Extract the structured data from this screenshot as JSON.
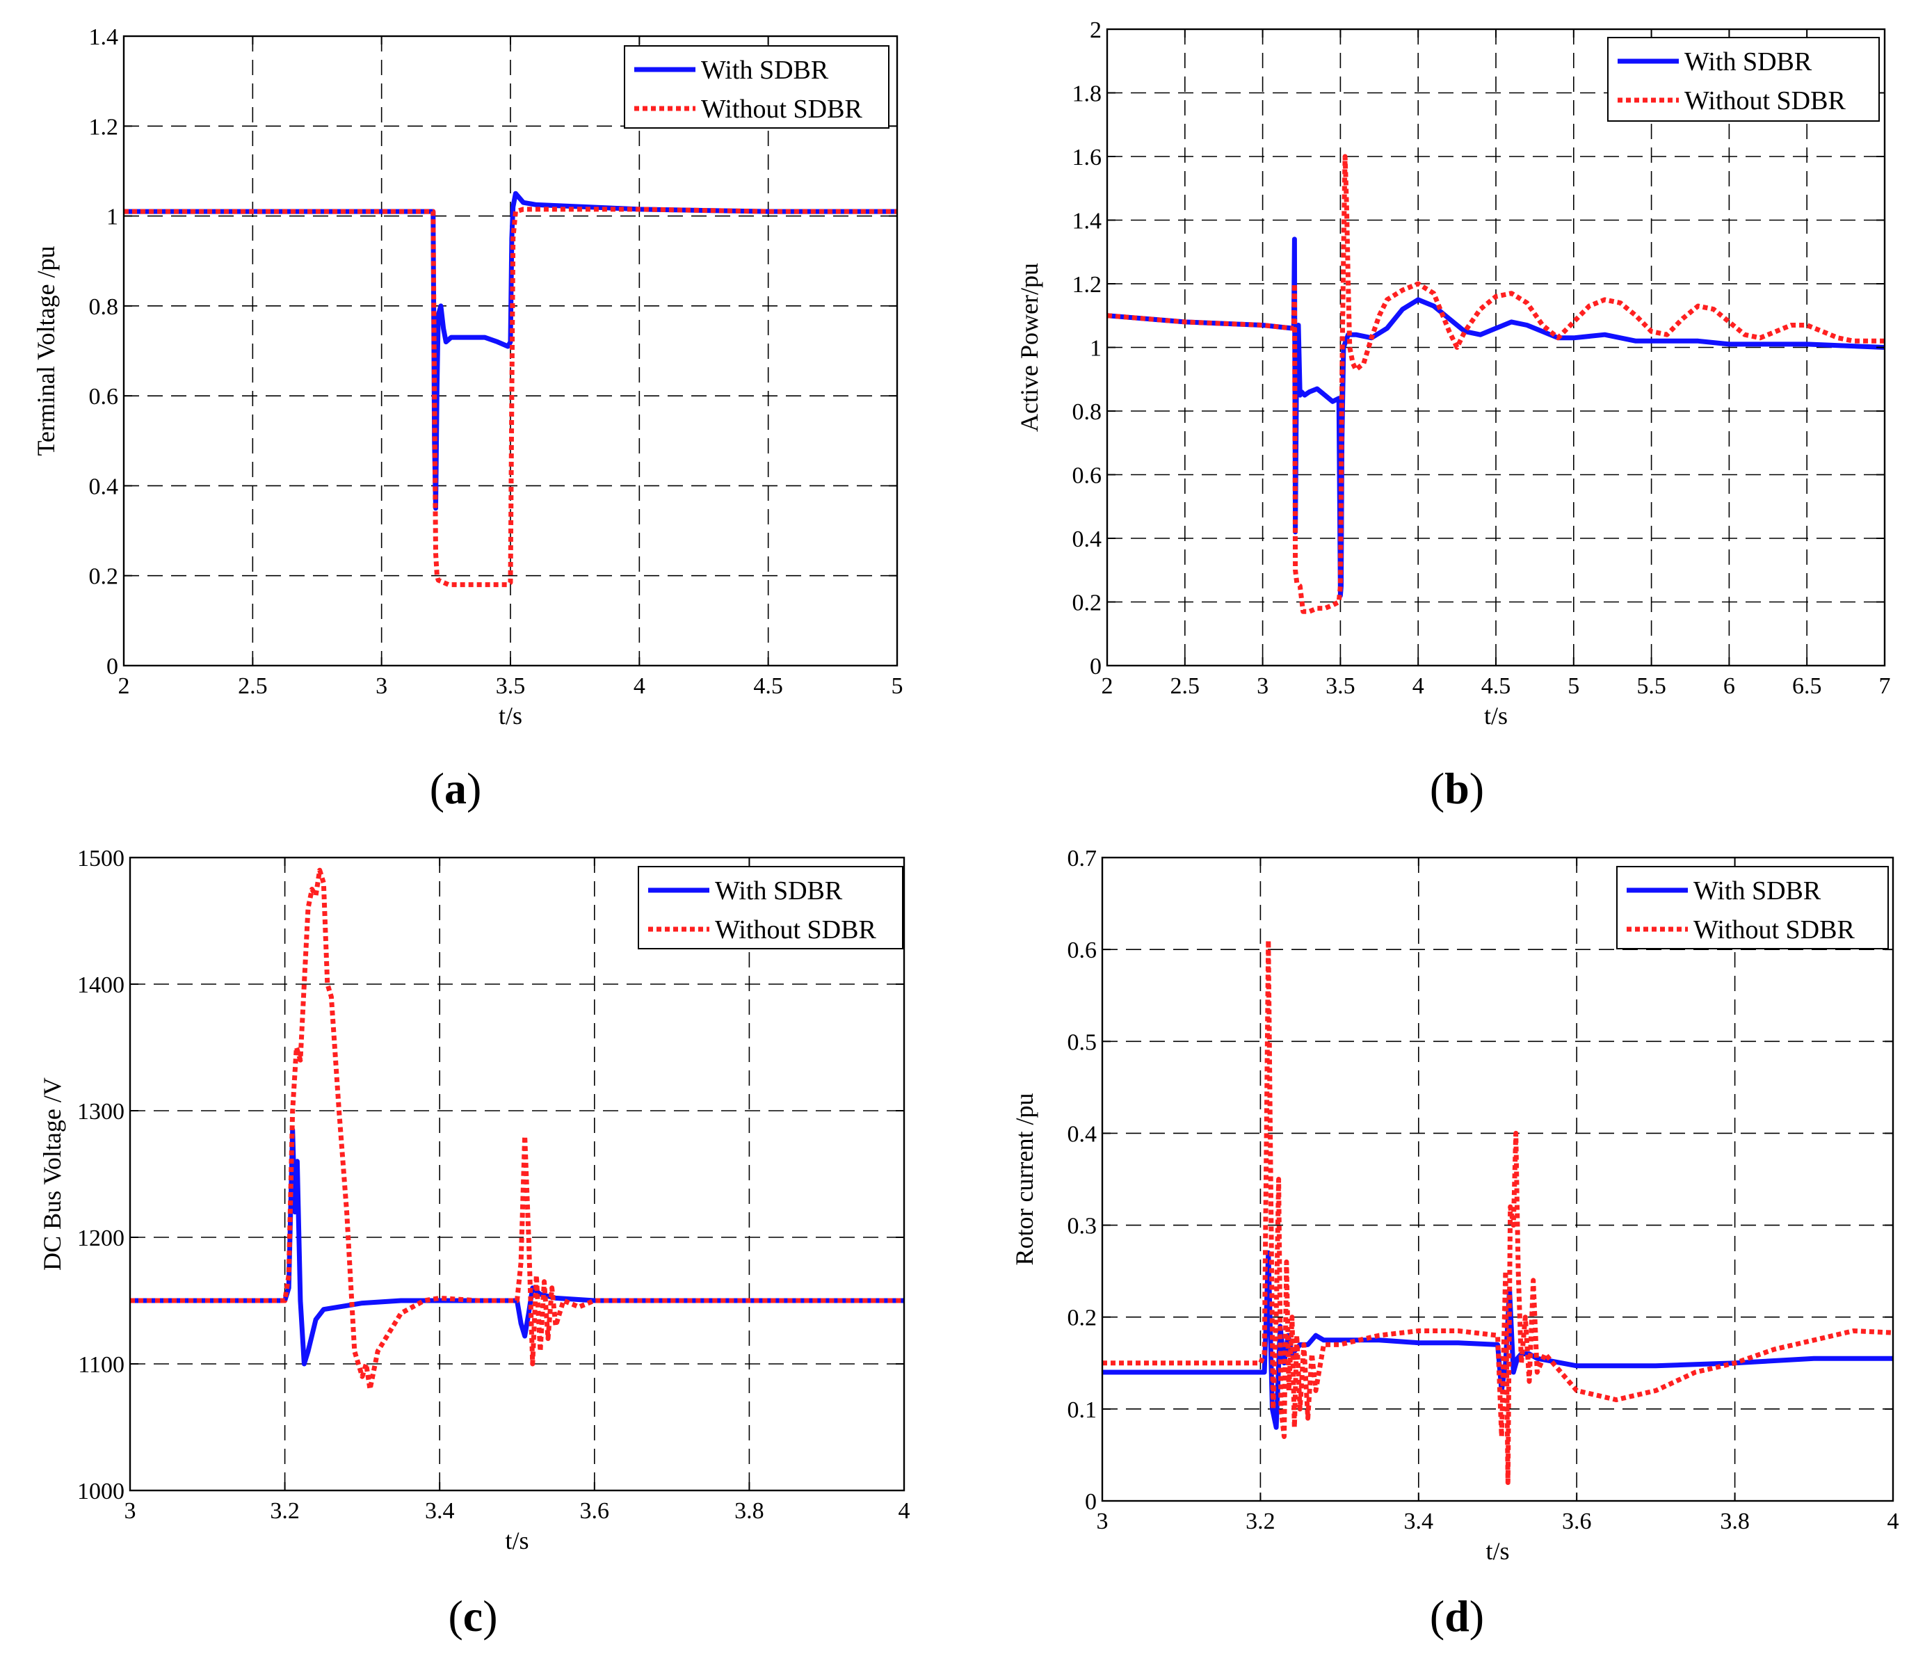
{
  "chart_data": [
    {
      "id": "a",
      "caption_letter": "a",
      "type": "line",
      "xlabel": "t/s",
      "ylabel": "Terminal Voltage /pu",
      "xlim": [
        2,
        5
      ],
      "ylim": [
        0,
        1.4
      ],
      "xticks": [
        2,
        2.5,
        3,
        3.5,
        4,
        4.5,
        5
      ],
      "xtick_labels": [
        "2",
        "2.5",
        "3",
        "3.5",
        "4",
        "4.5",
        "5"
      ],
      "yticks": [
        0,
        0.2,
        0.4,
        0.6,
        0.8,
        1,
        1.2,
        1.4
      ],
      "ytick_labels": [
        "0",
        "0.2",
        "0.4",
        "0.6",
        "0.8",
        "1",
        "1.2",
        "1.4"
      ],
      "grid": true,
      "legend_position": "top-right",
      "series": [
        {
          "name": "With SDBR",
          "color": "#1010ff",
          "style": "solid",
          "x": [
            2,
            2.5,
            3,
            3.19,
            3.2,
            3.205,
            3.21,
            3.215,
            3.22,
            3.23,
            3.24,
            3.25,
            3.27,
            3.3,
            3.35,
            3.4,
            3.45,
            3.49,
            3.5,
            3.505,
            3.51,
            3.52,
            3.55,
            3.6,
            3.8,
            4,
            4.5,
            5
          ],
          "y": [
            1.01,
            1.01,
            1.01,
            1.01,
            1.01,
            0.5,
            0.35,
            0.62,
            0.78,
            0.8,
            0.75,
            0.72,
            0.73,
            0.73,
            0.73,
            0.73,
            0.72,
            0.71,
            0.72,
            0.95,
            1.02,
            1.05,
            1.03,
            1.025,
            1.02,
            1.015,
            1.01,
            1.01
          ]
        },
        {
          "name": "Without SDBR",
          "color": "#ff2020",
          "style": "dotted",
          "x": [
            2,
            2.5,
            3,
            3.19,
            3.2,
            3.205,
            3.21,
            3.215,
            3.22,
            3.24,
            3.26,
            3.3,
            3.4,
            3.49,
            3.5,
            3.505,
            3.51,
            3.52,
            3.55,
            3.6,
            4,
            4.5,
            5
          ],
          "y": [
            1.01,
            1.01,
            1.01,
            1.01,
            1.01,
            0.6,
            0.25,
            0.2,
            0.19,
            0.185,
            0.18,
            0.18,
            0.18,
            0.18,
            0.185,
            0.6,
            0.95,
            1.01,
            1.015,
            1.015,
            1.015,
            1.01,
            1.01
          ]
        }
      ]
    },
    {
      "id": "b",
      "caption_letter": "b",
      "type": "line",
      "xlabel": "t/s",
      "ylabel": "Active Power/pu",
      "xlim": [
        2,
        7
      ],
      "ylim": [
        0,
        2
      ],
      "xticks": [
        2,
        2.5,
        3,
        3.5,
        4,
        4.5,
        5,
        5.5,
        6,
        6.5,
        7
      ],
      "xtick_labels": [
        "2",
        "2.5",
        "3",
        "3.5",
        "4",
        "4.5",
        "5",
        "5.5",
        "6",
        "6.5",
        "7"
      ],
      "yticks": [
        0,
        0.2,
        0.4,
        0.6,
        0.8,
        1,
        1.2,
        1.4,
        1.6,
        1.8,
        2
      ],
      "ytick_labels": [
        "0",
        "0.2",
        "0.4",
        "0.6",
        "0.8",
        "1",
        "1.2",
        "1.4",
        "1.6",
        "1.8",
        "2"
      ],
      "grid": true,
      "legend_position": "top-right",
      "series": [
        {
          "name": "With SDBR",
          "color": "#1010ff",
          "style": "solid",
          "x": [
            2,
            2.5,
            3,
            3.19,
            3.2,
            3.205,
            3.21,
            3.22,
            3.23,
            3.24,
            3.25,
            3.27,
            3.3,
            3.35,
            3.4,
            3.45,
            3.49,
            3.5,
            3.505,
            3.51,
            3.52,
            3.55,
            3.6,
            3.7,
            3.8,
            3.9,
            4.0,
            4.1,
            4.2,
            4.3,
            4.4,
            4.5,
            4.6,
            4.7,
            4.8,
            4.9,
            5.0,
            5.2,
            5.4,
            5.6,
            5.8,
            6.0,
            6.5,
            7.0
          ],
          "y": [
            1.1,
            1.08,
            1.07,
            1.06,
            1.06,
            1.34,
            0.42,
            1.05,
            1.07,
            0.85,
            0.86,
            0.85,
            0.86,
            0.87,
            0.85,
            0.83,
            0.84,
            0.22,
            0.25,
            0.7,
            1.0,
            1.04,
            1.04,
            1.03,
            1.06,
            1.12,
            1.15,
            1.13,
            1.09,
            1.05,
            1.04,
            1.06,
            1.08,
            1.07,
            1.05,
            1.03,
            1.03,
            1.04,
            1.02,
            1.02,
            1.02,
            1.01,
            1.01,
            1.0
          ]
        },
        {
          "name": "Without SDBR",
          "color": "#ff2020",
          "style": "dotted",
          "x": [
            2,
            2.5,
            3,
            3.19,
            3.2,
            3.205,
            3.21,
            3.22,
            3.24,
            3.26,
            3.3,
            3.35,
            3.4,
            3.45,
            3.49,
            3.5,
            3.51,
            3.52,
            3.53,
            3.54,
            3.55,
            3.56,
            3.58,
            3.6,
            3.65,
            3.7,
            3.75,
            3.8,
            3.9,
            4.0,
            4.1,
            4.2,
            4.25,
            4.3,
            4.4,
            4.5,
            4.6,
            4.7,
            4.8,
            4.9,
            5.0,
            5.1,
            5.2,
            5.3,
            5.4,
            5.5,
            5.6,
            5.7,
            5.8,
            5.9,
            6.0,
            6.1,
            6.2,
            6.3,
            6.4,
            6.5,
            6.6,
            6.7,
            6.8,
            6.9,
            7.0
          ],
          "y": [
            1.1,
            1.08,
            1.07,
            1.06,
            1.06,
            1.2,
            0.3,
            0.26,
            0.25,
            0.17,
            0.17,
            0.18,
            0.18,
            0.19,
            0.2,
            0.25,
            0.9,
            1.3,
            1.6,
            1.45,
            1.2,
            1.0,
            0.95,
            0.93,
            0.95,
            1.03,
            1.1,
            1.15,
            1.18,
            1.2,
            1.17,
            1.05,
            1.0,
            1.05,
            1.12,
            1.16,
            1.17,
            1.14,
            1.07,
            1.03,
            1.08,
            1.13,
            1.15,
            1.14,
            1.1,
            1.05,
            1.04,
            1.09,
            1.13,
            1.12,
            1.08,
            1.04,
            1.03,
            1.05,
            1.07,
            1.07,
            1.05,
            1.03,
            1.02,
            1.02,
            1.02
          ]
        }
      ]
    },
    {
      "id": "c",
      "caption_letter": "c",
      "type": "line",
      "xlabel": "t/s",
      "ylabel": "DC Bus Voltage /V",
      "xlim": [
        3,
        4
      ],
      "ylim": [
        1000,
        1500
      ],
      "xticks": [
        3,
        3.2,
        3.4,
        3.6,
        3.8,
        4
      ],
      "xtick_labels": [
        "3",
        "3.2",
        "3.4",
        "3.6",
        "3.8",
        "4"
      ],
      "yticks": [
        1000,
        1100,
        1200,
        1300,
        1400,
        1500
      ],
      "ytick_labels": [
        "1000",
        "1100",
        "1200",
        "1300",
        "1400",
        "1500"
      ],
      "grid": true,
      "legend_position": "top-right",
      "series": [
        {
          "name": "With SDBR",
          "color": "#1010ff",
          "style": "solid",
          "x": [
            3.0,
            3.1,
            3.2,
            3.205,
            3.21,
            3.213,
            3.216,
            3.22,
            3.225,
            3.23,
            3.24,
            3.25,
            3.27,
            3.3,
            3.35,
            3.4,
            3.45,
            3.5,
            3.505,
            3.51,
            3.515,
            3.52,
            3.53,
            3.55,
            3.6,
            3.7,
            3.8,
            3.9,
            4.0
          ],
          "y": [
            1150,
            1150,
            1150,
            1160,
            1285,
            1220,
            1260,
            1150,
            1100,
            1110,
            1135,
            1143,
            1145,
            1148,
            1150,
            1150,
            1150,
            1150,
            1132,
            1122,
            1140,
            1160,
            1155,
            1152,
            1150,
            1150,
            1150,
            1150,
            1150
          ]
        },
        {
          "name": "Without SDBR",
          "color": "#ff2020",
          "style": "dotted",
          "x": [
            3.0,
            3.1,
            3.2,
            3.205,
            3.21,
            3.215,
            3.22,
            3.225,
            3.23,
            3.235,
            3.24,
            3.245,
            3.25,
            3.255,
            3.26,
            3.27,
            3.28,
            3.29,
            3.3,
            3.305,
            3.31,
            3.32,
            3.33,
            3.35,
            3.38,
            3.4,
            3.45,
            3.5,
            3.505,
            3.51,
            3.515,
            3.52,
            3.525,
            3.53,
            3.535,
            3.54,
            3.545,
            3.55,
            3.56,
            3.58,
            3.6,
            3.7,
            4.0
          ],
          "y": [
            1150,
            1150,
            1150,
            1170,
            1300,
            1350,
            1340,
            1400,
            1460,
            1475,
            1470,
            1490,
            1480,
            1400,
            1390,
            1300,
            1220,
            1110,
            1090,
            1100,
            1080,
            1110,
            1120,
            1140,
            1150,
            1152,
            1150,
            1150,
            1180,
            1280,
            1200,
            1100,
            1170,
            1110,
            1165,
            1120,
            1160,
            1130,
            1150,
            1145,
            1150,
            1150,
            1150
          ]
        }
      ]
    },
    {
      "id": "d",
      "caption_letter": "d",
      "type": "line",
      "xlabel": "t/s",
      "ylabel": "Rotor current  /pu",
      "xlim": [
        3,
        4
      ],
      "ylim": [
        0,
        0.7
      ],
      "xticks": [
        3,
        3.2,
        3.4,
        3.6,
        3.8,
        4
      ],
      "xtick_labels": [
        "3",
        "3.2",
        "3.4",
        "3.6",
        "3.8",
        "4"
      ],
      "yticks": [
        0,
        0.1,
        0.2,
        0.3,
        0.4,
        0.5,
        0.6,
        0.7
      ],
      "ytick_labels": [
        "0",
        "0.1",
        "0.2",
        "0.3",
        "0.4",
        "0.5",
        "0.6",
        "0.7"
      ],
      "grid": true,
      "legend_position": "top-right",
      "series": [
        {
          "name": "With SDBR",
          "color": "#1010ff",
          "style": "solid",
          "x": [
            3.0,
            3.1,
            3.2,
            3.205,
            3.21,
            3.215,
            3.22,
            3.225,
            3.23,
            3.235,
            3.24,
            3.25,
            3.26,
            3.27,
            3.28,
            3.3,
            3.35,
            3.4,
            3.45,
            3.5,
            3.505,
            3.51,
            3.515,
            3.52,
            3.525,
            3.53,
            3.54,
            3.55,
            3.6,
            3.7,
            3.8,
            3.9,
            4.0
          ],
          "y": [
            0.14,
            0.14,
            0.14,
            0.14,
            0.27,
            0.1,
            0.08,
            0.19,
            0.15,
            0.18,
            0.16,
            0.17,
            0.17,
            0.18,
            0.175,
            0.175,
            0.175,
            0.172,
            0.172,
            0.17,
            0.12,
            0.15,
            0.23,
            0.14,
            0.155,
            0.16,
            0.16,
            0.155,
            0.147,
            0.147,
            0.15,
            0.155,
            0.155
          ]
        },
        {
          "name": "Without SDBR",
          "color": "#ff2020",
          "style": "dotted",
          "x": [
            3.0,
            3.1,
            3.2,
            3.205,
            3.21,
            3.213,
            3.216,
            3.22,
            3.223,
            3.226,
            3.23,
            3.233,
            3.236,
            3.24,
            3.243,
            3.246,
            3.25,
            3.255,
            3.26,
            3.265,
            3.27,
            3.28,
            3.3,
            3.35,
            3.4,
            3.45,
            3.5,
            3.505,
            3.51,
            3.513,
            3.516,
            3.52,
            3.523,
            3.526,
            3.53,
            3.535,
            3.54,
            3.545,
            3.55,
            3.56,
            3.58,
            3.6,
            3.65,
            3.7,
            3.75,
            3.8,
            3.85,
            3.9,
            3.95,
            4.0
          ],
          "y": [
            0.15,
            0.15,
            0.15,
            0.16,
            0.61,
            0.35,
            0.1,
            0.2,
            0.35,
            0.1,
            0.07,
            0.26,
            0.12,
            0.2,
            0.08,
            0.18,
            0.1,
            0.17,
            0.09,
            0.16,
            0.12,
            0.17,
            0.17,
            0.18,
            0.185,
            0.185,
            0.18,
            0.07,
            0.25,
            0.02,
            0.32,
            0.3,
            0.4,
            0.25,
            0.15,
            0.2,
            0.13,
            0.24,
            0.14,
            0.16,
            0.14,
            0.12,
            0.11,
            0.12,
            0.14,
            0.15,
            0.165,
            0.175,
            0.185,
            0.183
          ]
        }
      ]
    }
  ]
}
